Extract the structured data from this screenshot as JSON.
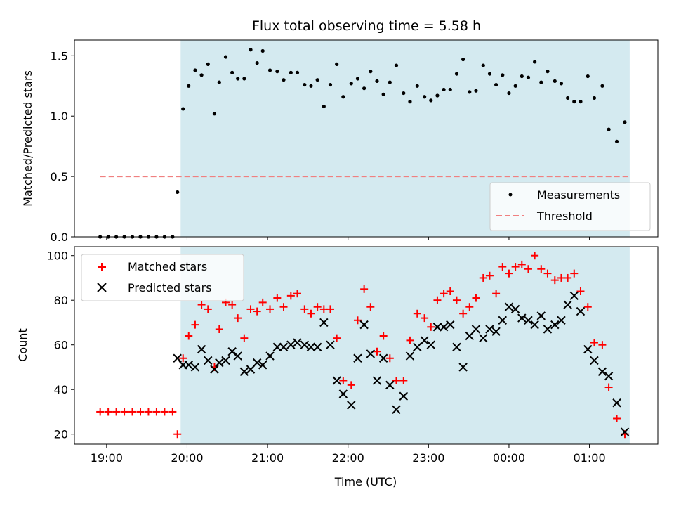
{
  "chart_data": [
    {
      "type": "scatter",
      "title": "Flux total observing time = 5.58 h",
      "xlabel": "",
      "ylabel": "Matched/Predicted stars",
      "ylim": [
        0,
        1.63
      ],
      "yticks": [
        0.0,
        0.5,
        1.0,
        1.5
      ],
      "ytick_labels": [
        "0.0",
        "0.5",
        "1.0",
        "1.5"
      ],
      "xlim_hours": [
        18.6,
        25.85
      ],
      "xticks": [
        19,
        20,
        21,
        22,
        23,
        24,
        25
      ],
      "observing_window_hours": [
        19.92,
        25.5
      ],
      "observing_window_color": "#d4eaf0",
      "legend_position": "lower-right",
      "threshold": {
        "name": "Threshold",
        "value": 0.5,
        "x_range_hours": [
          18.92,
          25.5
        ],
        "color": "#f08080"
      },
      "series": [
        {
          "name": "Measurements",
          "marker": "dot",
          "color": "#000000",
          "points": [
            [
              18.92,
              0.0
            ],
            [
              19.02,
              0.0
            ],
            [
              19.12,
              0.0
            ],
            [
              19.22,
              0.0
            ],
            [
              19.32,
              0.0
            ],
            [
              19.42,
              0.0
            ],
            [
              19.52,
              0.0
            ],
            [
              19.62,
              0.0
            ],
            [
              19.72,
              0.0
            ],
            [
              19.82,
              0.0
            ],
            [
              19.88,
              0.37
            ],
            [
              19.95,
              1.06
            ],
            [
              20.02,
              1.25
            ],
            [
              20.1,
              1.38
            ],
            [
              20.18,
              1.34
            ],
            [
              20.26,
              1.43
            ],
            [
              20.34,
              1.02
            ],
            [
              20.4,
              1.28
            ],
            [
              20.48,
              1.49
            ],
            [
              20.56,
              1.36
            ],
            [
              20.63,
              1.31
            ],
            [
              20.71,
              1.31
            ],
            [
              20.79,
              1.55
            ],
            [
              20.87,
              1.44
            ],
            [
              20.94,
              1.54
            ],
            [
              21.03,
              1.38
            ],
            [
              21.12,
              1.37
            ],
            [
              21.2,
              1.3
            ],
            [
              21.29,
              1.36
            ],
            [
              21.37,
              1.36
            ],
            [
              21.46,
              1.26
            ],
            [
              21.54,
              1.25
            ],
            [
              21.62,
              1.3
            ],
            [
              21.7,
              1.08
            ],
            [
              21.78,
              1.26
            ],
            [
              21.86,
              1.43
            ],
            [
              21.94,
              1.16
            ],
            [
              22.04,
              1.27
            ],
            [
              22.12,
              1.31
            ],
            [
              22.2,
              1.23
            ],
            [
              22.28,
              1.37
            ],
            [
              22.36,
              1.29
            ],
            [
              22.44,
              1.18
            ],
            [
              22.52,
              1.28
            ],
            [
              22.6,
              1.42
            ],
            [
              22.69,
              1.19
            ],
            [
              22.77,
              1.12
            ],
            [
              22.86,
              1.25
            ],
            [
              22.95,
              1.16
            ],
            [
              23.03,
              1.13
            ],
            [
              23.11,
              1.17
            ],
            [
              23.19,
              1.22
            ],
            [
              23.27,
              1.22
            ],
            [
              23.35,
              1.35
            ],
            [
              23.43,
              1.47
            ],
            [
              23.51,
              1.2
            ],
            [
              23.59,
              1.21
            ],
            [
              23.68,
              1.42
            ],
            [
              23.76,
              1.35
            ],
            [
              23.84,
              1.26
            ],
            [
              23.92,
              1.34
            ],
            [
              24.0,
              1.19
            ],
            [
              24.08,
              1.25
            ],
            [
              24.16,
              1.33
            ],
            [
              24.24,
              1.32
            ],
            [
              24.32,
              1.45
            ],
            [
              24.4,
              1.28
            ],
            [
              24.48,
              1.37
            ],
            [
              24.57,
              1.29
            ],
            [
              24.65,
              1.27
            ],
            [
              24.73,
              1.15
            ],
            [
              24.81,
              1.12
            ],
            [
              24.89,
              1.12
            ],
            [
              24.98,
              1.33
            ],
            [
              25.06,
              1.15
            ],
            [
              25.16,
              1.25
            ],
            [
              25.24,
              0.89
            ],
            [
              25.34,
              0.79
            ],
            [
              25.44,
              0.95
            ]
          ]
        }
      ]
    },
    {
      "type": "scatter",
      "title": "",
      "xlabel": "Time (UTC)",
      "ylabel": "Count",
      "ylim": [
        15.5,
        104
      ],
      "yticks": [
        20,
        40,
        60,
        80,
        100
      ],
      "ytick_labels": [
        "20",
        "40",
        "60",
        "80",
        "100"
      ],
      "xlim_hours": [
        18.6,
        25.85
      ],
      "xticks": [
        19,
        20,
        21,
        22,
        23,
        24,
        25
      ],
      "xtick_labels": [
        "19:00",
        "20:00",
        "21:00",
        "22:00",
        "23:00",
        "00:00",
        "01:00"
      ],
      "observing_window_hours": [
        19.92,
        25.5
      ],
      "legend_position": "upper-left",
      "series": [
        {
          "name": "Matched stars",
          "marker": "plus",
          "color": "#ff0000",
          "points": [
            [
              18.92,
              30
            ],
            [
              19.02,
              30
            ],
            [
              19.12,
              30
            ],
            [
              19.22,
              30
            ],
            [
              19.32,
              30
            ],
            [
              19.42,
              30
            ],
            [
              19.52,
              30
            ],
            [
              19.62,
              30
            ],
            [
              19.72,
              30
            ],
            [
              19.82,
              30
            ],
            [
              19.88,
              20
            ],
            [
              19.95,
              54
            ],
            [
              20.02,
              64
            ],
            [
              20.1,
              69
            ],
            [
              20.18,
              78
            ],
            [
              20.26,
              76
            ],
            [
              20.34,
              50
            ],
            [
              20.4,
              67
            ],
            [
              20.48,
              79
            ],
            [
              20.56,
              78
            ],
            [
              20.63,
              72
            ],
            [
              20.71,
              63
            ],
            [
              20.79,
              76
            ],
            [
              20.87,
              75
            ],
            [
              20.94,
              79
            ],
            [
              21.03,
              76
            ],
            [
              21.12,
              81
            ],
            [
              21.2,
              77
            ],
            [
              21.29,
              82
            ],
            [
              21.37,
              83
            ],
            [
              21.46,
              76
            ],
            [
              21.54,
              74
            ],
            [
              21.62,
              77
            ],
            [
              21.7,
              76
            ],
            [
              21.78,
              76
            ],
            [
              21.86,
              63
            ],
            [
              21.94,
              44
            ],
            [
              22.04,
              42
            ],
            [
              22.12,
              71
            ],
            [
              22.2,
              85
            ],
            [
              22.28,
              77
            ],
            [
              22.36,
              57
            ],
            [
              22.44,
              64
            ],
            [
              22.52,
              54
            ],
            [
              22.6,
              44
            ],
            [
              22.69,
              44
            ],
            [
              22.77,
              62
            ],
            [
              22.86,
              74
            ],
            [
              22.95,
              72
            ],
            [
              23.03,
              68
            ],
            [
              23.11,
              80
            ],
            [
              23.19,
              83
            ],
            [
              23.27,
              84
            ],
            [
              23.35,
              80
            ],
            [
              23.43,
              74
            ],
            [
              23.51,
              77
            ],
            [
              23.59,
              81
            ],
            [
              23.68,
              90
            ],
            [
              23.76,
              91
            ],
            [
              23.84,
              83
            ],
            [
              23.92,
              95
            ],
            [
              24.0,
              92
            ],
            [
              24.08,
              95
            ],
            [
              24.16,
              96
            ],
            [
              24.24,
              94
            ],
            [
              24.32,
              100
            ],
            [
              24.4,
              94
            ],
            [
              24.48,
              92
            ],
            [
              24.57,
              89
            ],
            [
              24.65,
              90
            ],
            [
              24.73,
              90
            ],
            [
              24.81,
              92
            ],
            [
              24.89,
              84
            ],
            [
              24.98,
              77
            ],
            [
              25.06,
              61
            ],
            [
              25.16,
              60
            ],
            [
              25.24,
              41
            ],
            [
              25.34,
              27
            ],
            [
              25.44,
              20
            ]
          ]
        },
        {
          "name": "Predicted stars",
          "marker": "x",
          "color": "#000000",
          "points": [
            [
              19.88,
              54
            ],
            [
              19.95,
              51
            ],
            [
              20.02,
              51
            ],
            [
              20.1,
              50
            ],
            [
              20.18,
              58
            ],
            [
              20.26,
              53
            ],
            [
              20.34,
              49
            ],
            [
              20.4,
              52
            ],
            [
              20.48,
              53
            ],
            [
              20.56,
              57
            ],
            [
              20.63,
              55
            ],
            [
              20.71,
              48
            ],
            [
              20.79,
              49
            ],
            [
              20.87,
              52
            ],
            [
              20.94,
              51
            ],
            [
              21.03,
              55
            ],
            [
              21.12,
              59
            ],
            [
              21.2,
              59
            ],
            [
              21.29,
              60
            ],
            [
              21.37,
              61
            ],
            [
              21.46,
              60
            ],
            [
              21.54,
              59
            ],
            [
              21.62,
              59
            ],
            [
              21.7,
              70
            ],
            [
              21.78,
              60
            ],
            [
              21.86,
              44
            ],
            [
              21.94,
              38
            ],
            [
              22.04,
              33
            ],
            [
              22.12,
              54
            ],
            [
              22.2,
              69
            ],
            [
              22.28,
              56
            ],
            [
              22.36,
              44
            ],
            [
              22.44,
              54
            ],
            [
              22.52,
              42
            ],
            [
              22.6,
              31
            ],
            [
              22.69,
              37
            ],
            [
              22.77,
              55
            ],
            [
              22.86,
              59
            ],
            [
              22.95,
              62
            ],
            [
              23.03,
              60
            ],
            [
              23.11,
              68
            ],
            [
              23.19,
              68
            ],
            [
              23.27,
              69
            ],
            [
              23.35,
              59
            ],
            [
              23.43,
              50
            ],
            [
              23.51,
              64
            ],
            [
              23.59,
              67
            ],
            [
              23.68,
              63
            ],
            [
              23.76,
              67
            ],
            [
              23.84,
              66
            ],
            [
              23.92,
              71
            ],
            [
              24.0,
              77
            ],
            [
              24.08,
              76
            ],
            [
              24.16,
              72
            ],
            [
              24.24,
              71
            ],
            [
              24.32,
              69
            ],
            [
              24.4,
              73
            ],
            [
              24.48,
              67
            ],
            [
              24.57,
              69
            ],
            [
              24.65,
              71
            ],
            [
              24.73,
              78
            ],
            [
              24.81,
              82
            ],
            [
              24.89,
              75
            ],
            [
              24.98,
              58
            ],
            [
              25.06,
              53
            ],
            [
              25.16,
              48
            ],
            [
              25.24,
              46
            ],
            [
              25.34,
              34
            ],
            [
              25.44,
              21
            ]
          ]
        }
      ]
    }
  ]
}
